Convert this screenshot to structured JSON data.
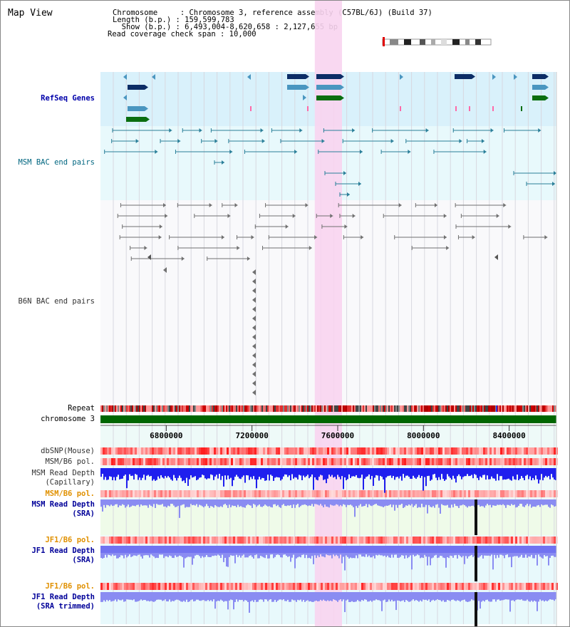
{
  "view": {
    "title": "Map View",
    "info_lines": [
      "Chromosome     : Chromosome 3, reference assembly (C57BL/6J) (Build 37)",
      "Length (b.p.) : 159,599,783",
      "  Show (b.p.) : 6,493,004-8,620,658 : 2,127,655 bp",
      "Read coverage check span : 10,000"
    ]
  },
  "region": {
    "start": 6493004,
    "end": 8620658,
    "highlight": [
      7493000,
      7620000
    ]
  },
  "axis": {
    "ticks": [
      6800000,
      7200000,
      7600000,
      8000000,
      8400000
    ],
    "labels": [
      "6800000",
      "7200000",
      "7600000",
      "8000000",
      "8400000"
    ]
  },
  "tracks": {
    "refseq": {
      "label": "RefSeq Genes",
      "bg": "#d9f1fb"
    },
    "msm_bac": {
      "label": "MSM BAC end pairs",
      "bg": "#e8f9fc"
    },
    "b6n_bac": {
      "label": "B6N BAC end pairs"
    },
    "repeat": {
      "label": "Repeat"
    },
    "chromosome": {
      "label": "chromosome 3",
      "color": "#006600"
    },
    "dbsnp": {
      "label": "dbSNP(Mouse)"
    },
    "msm_b6_pol_1": {
      "label": "MSM/B6 pol."
    },
    "msm_depth_cap": {
      "label_lines": [
        "MSM Read Depth",
        "(Capillary)"
      ]
    },
    "msm_b6_pol_2": {
      "label": "MSM/B6 pol."
    },
    "msm_depth_sra": {
      "label_lines": [
        "MSM Read Depth",
        "(SRA)"
      ]
    },
    "jf1_b6_pol_1": {
      "label": "JF1/B6 pol."
    },
    "jf1_depth_sra": {
      "label_lines": [
        "JF1 Read Depth",
        "(SRA)"
      ]
    },
    "jf1_b6_pol_2": {
      "label": "JF1/B6 pol."
    },
    "jf1_depth_trim": {
      "label_lines": [
        "JF1 Read Depth",
        "(SRA trimmed)"
      ]
    }
  },
  "colors": {
    "highlight": "#f8d4f0",
    "gene_dark": "#0c2d66",
    "gene_light": "#4a96c0",
    "gene_green": "#0a6e10",
    "bac_msm": "#2a7f99",
    "bac_b6n": "#707070",
    "depth_blue": "#1f1fee",
    "depth_light": "#8a8cf2",
    "pol_red": "#f04040"
  }
}
